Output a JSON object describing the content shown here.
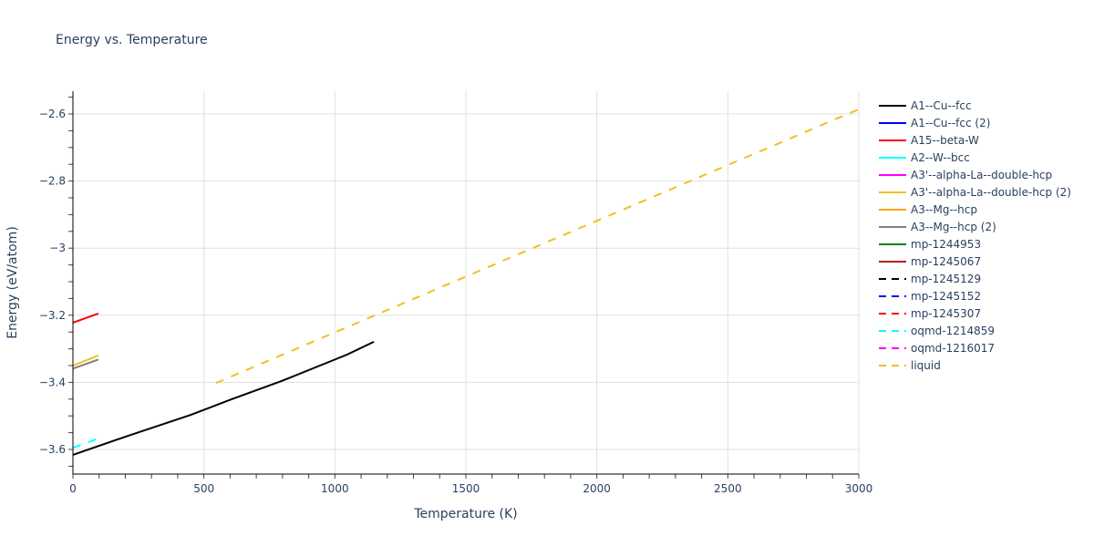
{
  "chart_data": {
    "type": "line",
    "title": "Energy vs. Temperature",
    "xlabel": "Temperature (K)",
    "ylabel": "Energy (eV/atom)",
    "xlim": [
      0,
      3000
    ],
    "ylim": [
      -3.67,
      -2.53
    ],
    "x_ticks": [
      "0",
      "500",
      "1000",
      "1500",
      "2000",
      "2500",
      "3000"
    ],
    "y_ticks": [
      "−2.6",
      "−2.8",
      "−3",
      "−3.2",
      "−3.4",
      "−3.6"
    ],
    "grid": true,
    "legend_position": "right",
    "series": [
      {
        "name": "A1--Cu--fcc",
        "color": "#000000",
        "dash": "solid",
        "x": [
          0,
          200,
          450,
          600,
          800,
          1000,
          1050,
          1149
        ],
        "y": [
          -3.616,
          -3.562,
          -3.497,
          -3.452,
          -3.395,
          -3.332,
          -3.316,
          -3.279
        ]
      },
      {
        "name": "A1--Cu--fcc (2)",
        "color": "#0000ff",
        "dash": "solid",
        "x": [],
        "y": []
      },
      {
        "name": "A15--beta-W",
        "color": "#ff0000",
        "dash": "solid",
        "x": [
          0,
          97
        ],
        "y": [
          -3.222,
          -3.195
        ]
      },
      {
        "name": "A2--W--bcc",
        "color": "#00ffff",
        "dash": "solid",
        "x": [],
        "y": []
      },
      {
        "name": "A3'--alpha-La--double-hcp",
        "color": "#ff00ff",
        "dash": "solid",
        "x": [],
        "y": []
      },
      {
        "name": "A3'--alpha-La--double-hcp (2)",
        "color": "#f0c020",
        "dash": "solid",
        "x": [
          0,
          97
        ],
        "y": [
          -3.35,
          -3.32
        ]
      },
      {
        "name": "A3--Mg--hcp",
        "color": "#ffa500",
        "dash": "solid",
        "x": [],
        "y": []
      },
      {
        "name": "A3--Mg--hcp (2)",
        "color": "#808080",
        "dash": "solid",
        "x": [
          0,
          97
        ],
        "y": [
          -3.359,
          -3.332
        ]
      },
      {
        "name": "mp-1244953",
        "color": "#008000",
        "dash": "solid",
        "x": [],
        "y": []
      },
      {
        "name": "mp-1245067",
        "color": "#b22222",
        "dash": "solid",
        "x": [],
        "y": []
      },
      {
        "name": "mp-1245129",
        "color": "#000000",
        "dash": "dash",
        "x": [],
        "y": []
      },
      {
        "name": "mp-1245152",
        "color": "#0000ff",
        "dash": "dash",
        "x": [],
        "y": []
      },
      {
        "name": "mp-1245307",
        "color": "#ff0000",
        "dash": "dash",
        "x": [],
        "y": []
      },
      {
        "name": "oqmd-1214859",
        "color": "#00ffff",
        "dash": "dash",
        "x": [
          0,
          97
        ],
        "y": [
          -3.595,
          -3.567
        ]
      },
      {
        "name": "oqmd-1216017",
        "color": "#ff00ff",
        "dash": "dash",
        "x": [],
        "y": []
      },
      {
        "name": "liquid",
        "color": "#f0c020",
        "dash": "dash",
        "x": [
          546,
          3000
        ],
        "y": [
          -3.402,
          -2.586
        ]
      }
    ]
  }
}
